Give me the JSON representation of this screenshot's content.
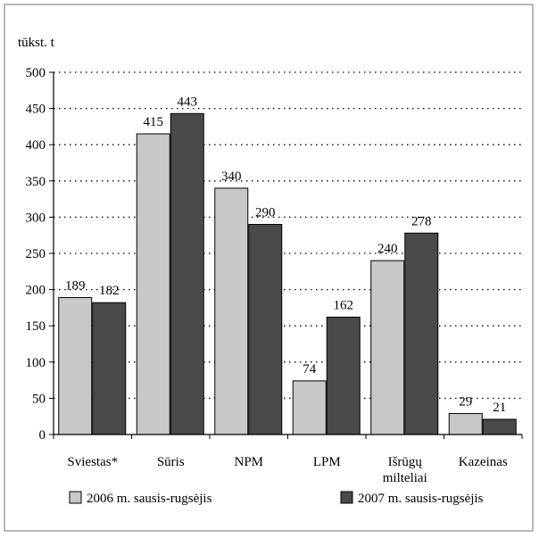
{
  "chart_data": {
    "type": "bar",
    "unit_label": "tūkst. t",
    "categories": [
      [
        "Sviestas*"
      ],
      [
        "Sūris"
      ],
      [
        "NPM"
      ],
      [
        "LPM"
      ],
      [
        "Išrūgų",
        "milteliai"
      ],
      [
        "Kazeinas"
      ]
    ],
    "series": [
      {
        "name": "2006 m. sausis-rugsėjis",
        "color": "#c8c8c8",
        "values": [
          189,
          415,
          340,
          74,
          240,
          29
        ]
      },
      {
        "name": "2007 m. sausis-rugsėjis",
        "color": "#4a4a4a",
        "values": [
          182,
          443,
          290,
          162,
          278,
          21
        ]
      }
    ],
    "y_ticks": [
      0,
      50,
      100,
      150,
      200,
      250,
      300,
      350,
      400,
      450,
      500
    ],
    "ylim": [
      0,
      500
    ],
    "grid": "dotted horizontal",
    "legend_position": "bottom"
  }
}
